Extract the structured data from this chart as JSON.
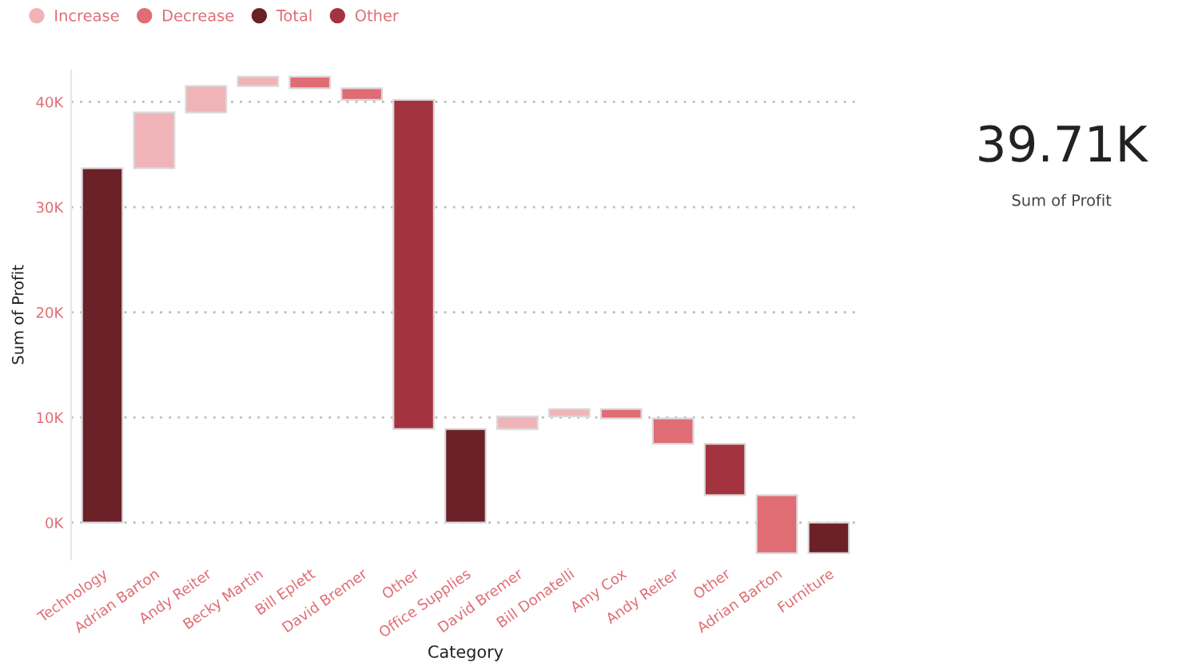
{
  "chart_data": [
    {
      "type": "bar",
      "xlabel": "Category",
      "ylabel": "Sum of Profit",
      "categories": [
        "Technology",
        "Adrian Barton",
        "Andy Reiter",
        "Becky Martin",
        "Bill Eplett",
        "David Bremer",
        "Other",
        "Office Supplies",
        "David Bremer",
        "Bill Donatelli",
        "Amy Cox",
        "Andy Reiter",
        "Other",
        "Adrian Barton",
        "Furniture"
      ],
      "series": [
        {
          "name": "Increase",
          "color": "#f0b4b8",
          "values": [
            null,
            5.3,
            2.5,
            0.9,
            null,
            null,
            null,
            null,
            1.2,
            0.7,
            null,
            null,
            null,
            null,
            null
          ],
          "base": [
            null,
            33.7,
            39.0,
            41.5,
            null,
            null,
            null,
            null,
            8.9,
            10.1,
            null,
            null,
            null,
            null,
            null
          ]
        },
        {
          "name": "Decrease",
          "color": "#e06c74",
          "values": [
            null,
            null,
            null,
            null,
            -1.1,
            -1.1,
            null,
            null,
            null,
            null,
            -0.9,
            -2.4,
            null,
            -5.5,
            null
          ],
          "base": [
            null,
            null,
            null,
            null,
            42.4,
            41.3,
            null,
            null,
            null,
            null,
            10.8,
            9.9,
            null,
            2.6,
            null
          ]
        },
        {
          "name": "Total",
          "color": "#6b2127",
          "values": [
            33.7,
            null,
            null,
            null,
            null,
            null,
            null,
            8.9,
            null,
            null,
            null,
            null,
            null,
            null,
            -2.9
          ],
          "base": [
            0,
            null,
            null,
            null,
            null,
            null,
            null,
            0,
            null,
            null,
            null,
            null,
            null,
            null,
            0
          ]
        },
        {
          "name": "Other",
          "color": "#a3343f",
          "values": [
            null,
            null,
            null,
            null,
            null,
            null,
            -31.3,
            null,
            null,
            null,
            null,
            null,
            -4.9,
            null,
            null
          ],
          "base": [
            null,
            null,
            null,
            null,
            null,
            null,
            40.2,
            null,
            null,
            null,
            null,
            null,
            7.5,
            null,
            null
          ]
        }
      ],
      "ylim": [
        -3.5,
        43
      ],
      "yticks": [
        {
          "value": 0,
          "label": "0K"
        },
        {
          "value": 10,
          "label": "10K"
        },
        {
          "value": 20,
          "label": "20K"
        },
        {
          "value": 30,
          "label": "30K"
        },
        {
          "value": 40,
          "label": "40K"
        }
      ],
      "grid": "y",
      "legend": "top left"
    },
    {
      "type": "other",
      "title": "39.71K",
      "subtitle": "Sum of Profit"
    }
  ]
}
